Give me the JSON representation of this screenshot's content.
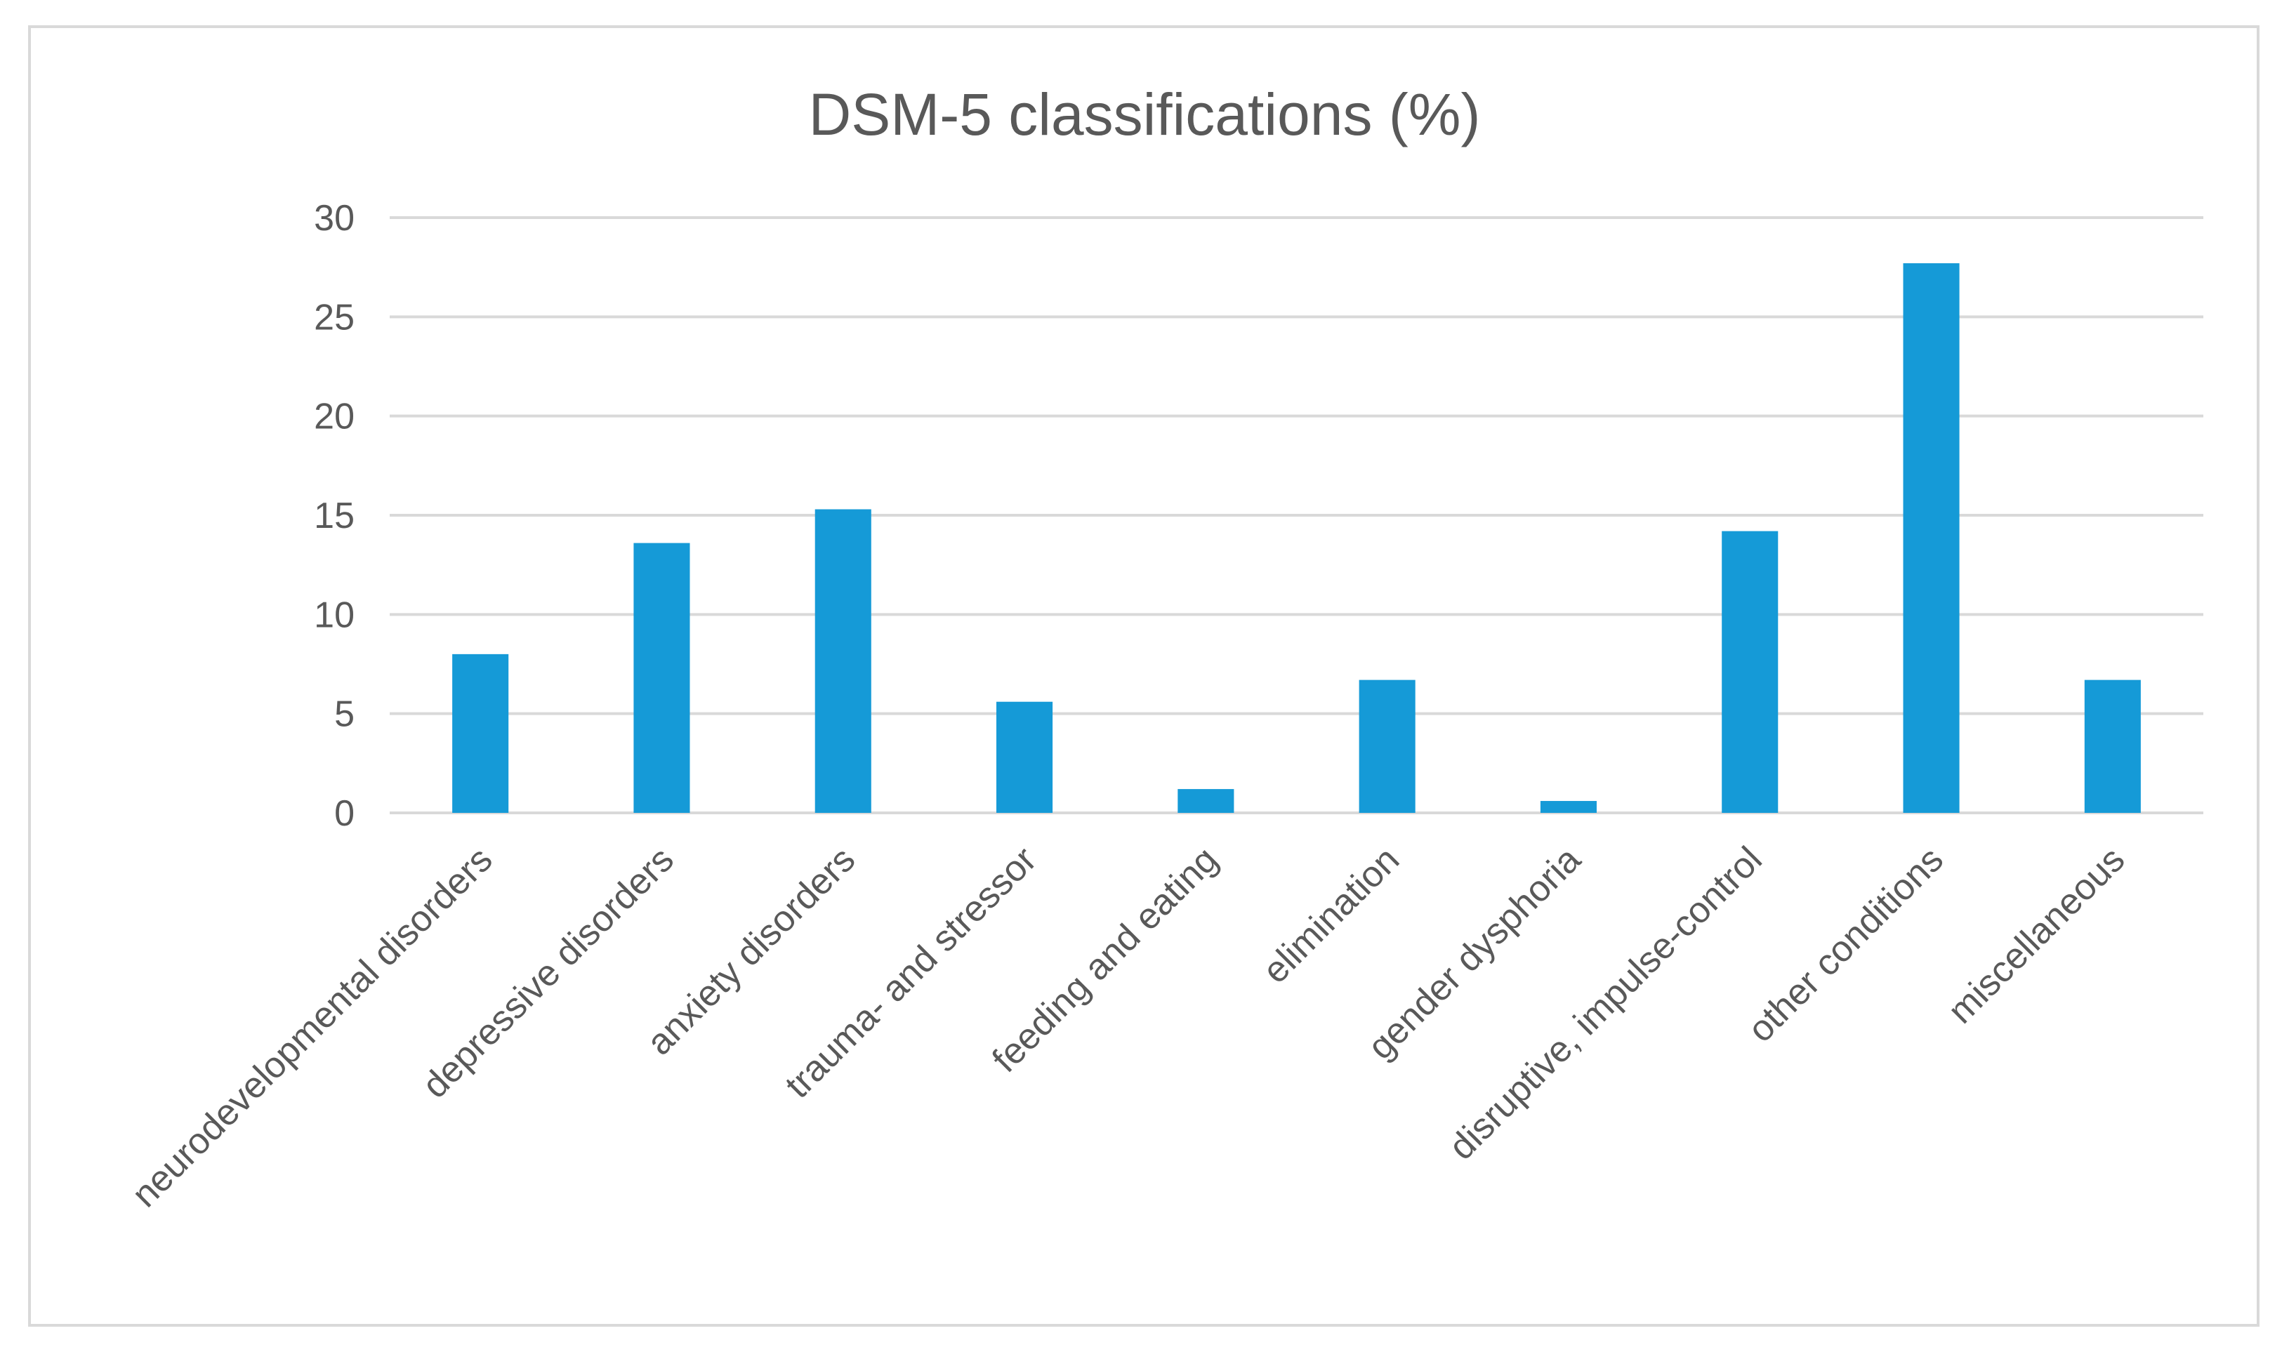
{
  "chart_data": {
    "type": "bar",
    "title": "DSM-5 classifications (%)",
    "xlabel": "",
    "ylabel": "",
    "ylim": [
      0,
      30
    ],
    "yticks": [
      0,
      5,
      10,
      15,
      20,
      25,
      30
    ],
    "grid": true,
    "legend": "none",
    "categories": [
      "neurodevelopmental disorders",
      "depressive disorders",
      "anxiety disorders",
      "trauma- and stressor",
      "feeding and eating",
      "elimination",
      "gender dysphoria",
      "disruptive, impulse-control",
      "other conditions",
      "miscellaneous"
    ],
    "values": [
      8.0,
      13.6,
      15.3,
      5.6,
      1.2,
      6.7,
      0.6,
      14.2,
      27.7,
      6.7
    ],
    "bar_color": "#159ad7",
    "grid_color": "#d9d9d9",
    "text_color": "#595959"
  }
}
